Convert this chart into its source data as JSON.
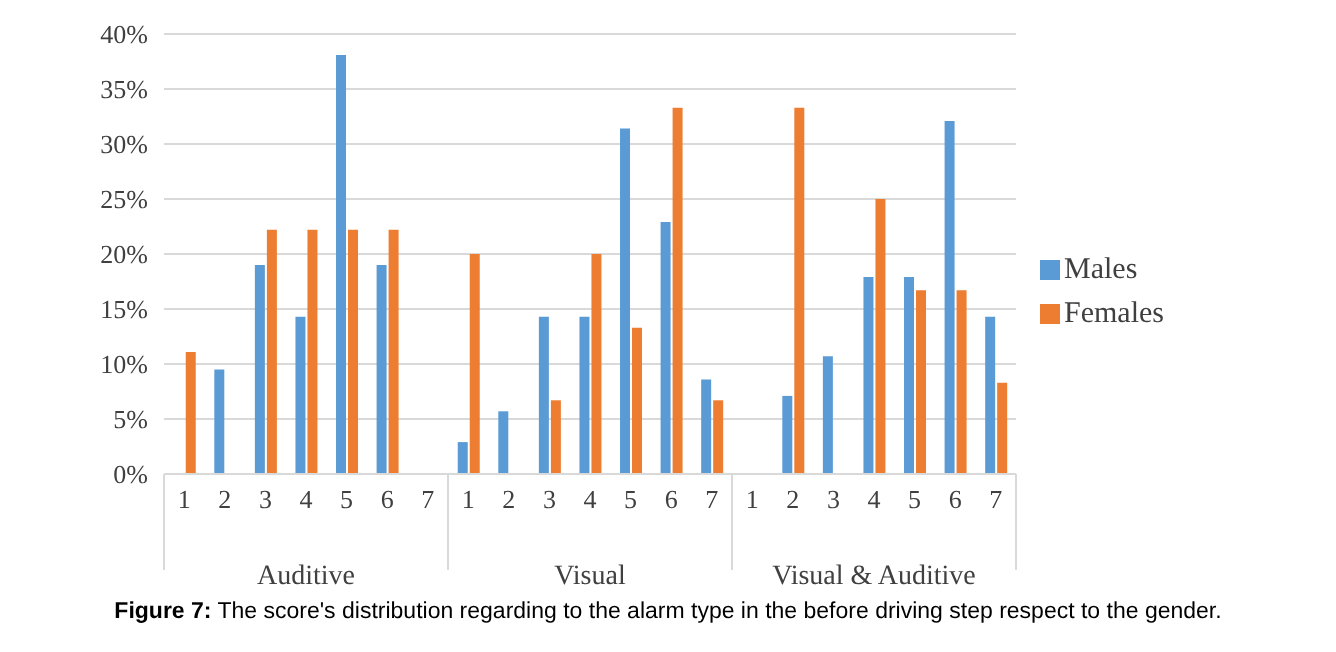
{
  "chart_data": {
    "type": "bar",
    "categories": [
      "1",
      "2",
      "3",
      "4",
      "5",
      "6",
      "7",
      "1",
      "2",
      "3",
      "4",
      "5",
      "6",
      "7",
      "1",
      "2",
      "3",
      "4",
      "5",
      "6",
      "7"
    ],
    "series": [
      {
        "name": "Males",
        "color": "#5b9bd5",
        "values": [
          0,
          9.5,
          19,
          14.3,
          38.1,
          19,
          0,
          2.9,
          5.7,
          14.3,
          14.3,
          31.4,
          22.9,
          8.6,
          0,
          7.1,
          10.7,
          17.9,
          17.9,
          32.1,
          14.3
        ]
      },
      {
        "name": "Females",
        "color": "#ed7d31",
        "values": [
          11.1,
          0,
          22.2,
          22.2,
          22.2,
          22.2,
          0,
          20,
          0,
          6.7,
          20,
          13.3,
          33.3,
          6.7,
          0,
          33.3,
          0,
          25,
          16.7,
          16.7,
          8.3
        ]
      }
    ],
    "ylim": [
      0,
      40
    ],
    "yticks": [
      {
        "value": 0,
        "label": "0%"
      },
      {
        "value": 5,
        "label": "5%"
      },
      {
        "value": 10,
        "label": "10%"
      },
      {
        "value": 15,
        "label": "15%"
      },
      {
        "value": 20,
        "label": "20%"
      },
      {
        "value": 25,
        "label": "25%"
      },
      {
        "value": 30,
        "label": "30%"
      },
      {
        "value": 35,
        "label": "35%"
      },
      {
        "value": 40,
        "label": "40%"
      }
    ],
    "grid": "y",
    "legend": "right",
    "annotations": [
      "Auditive",
      "Visual",
      "Visual & Auditive",
      "Figure 7: The score's distribution regarding to the alarm type in the before driving step respect to the gender."
    ]
  }
}
